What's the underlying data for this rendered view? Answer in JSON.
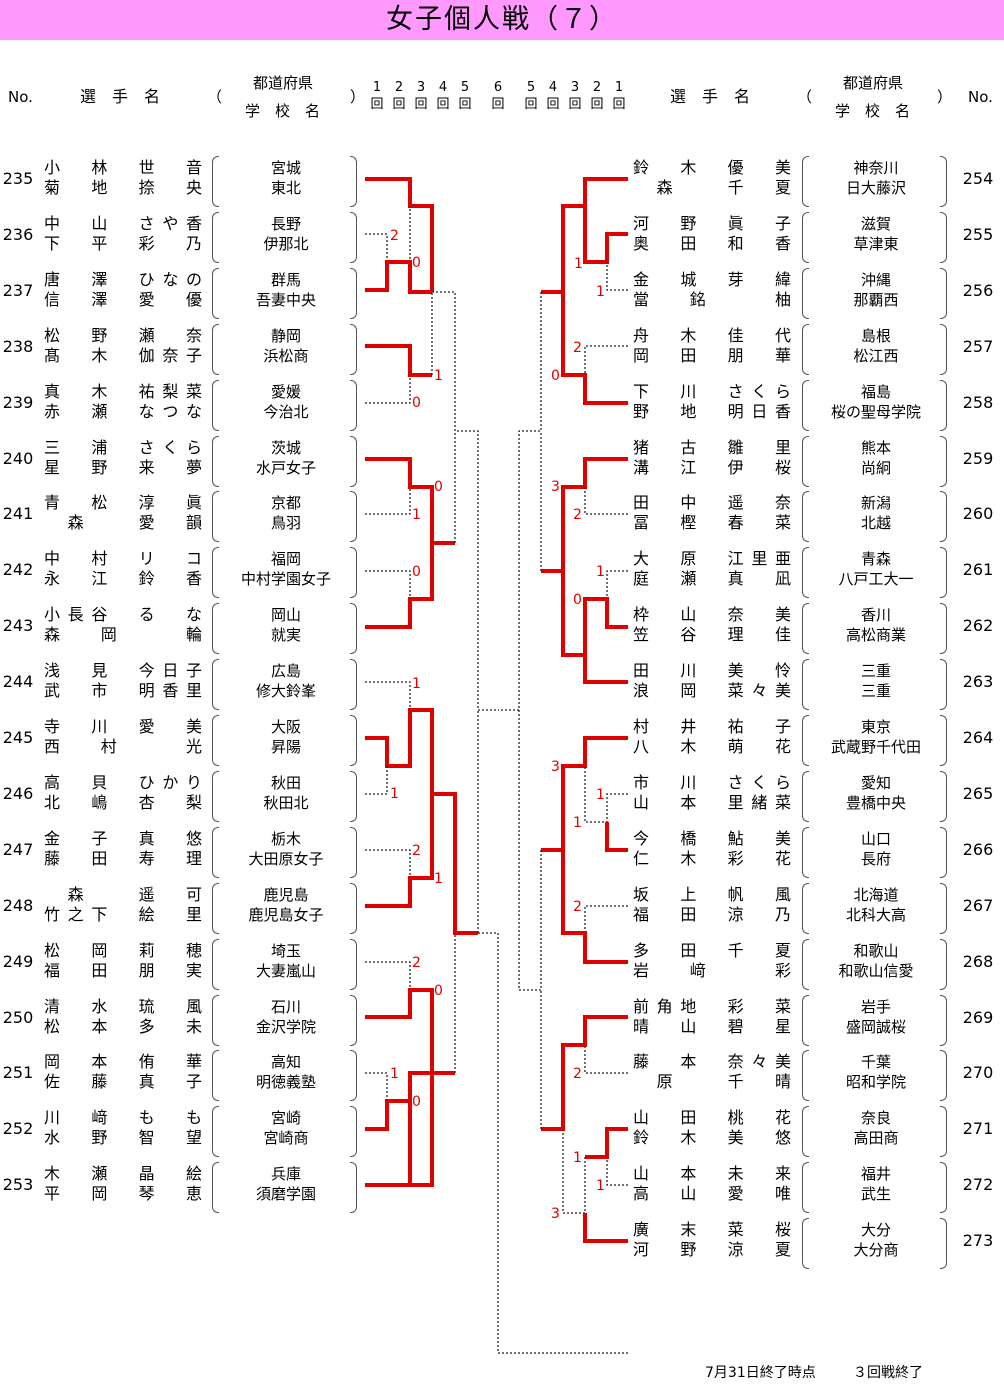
{
  "title": "女子個人戦（７）",
  "headers": {
    "no": "No.",
    "player": "選　手　名",
    "pref": "都道府県",
    "school": "学　校　名",
    "paren_open": "（",
    "paren_close": "）",
    "rounds_left": [
      "1",
      "2",
      "3",
      "4",
      "5"
    ],
    "round_center": "6",
    "rounds_right": [
      "5",
      "4",
      "3",
      "2",
      "1"
    ],
    "round_unit": "回"
  },
  "left": [
    {
      "no": "235",
      "names": [
        "小　林　世　音",
        "菊　地　捺　央"
      ],
      "pref": "宮城",
      "school": "東北"
    },
    {
      "no": "236",
      "names": [
        "中　山　さや香",
        "下　平　彩　乃"
      ],
      "pref": "長野",
      "school": "伊那北"
    },
    {
      "no": "237",
      "names": [
        "唐　澤　ひなの",
        "信　澤　愛　優"
      ],
      "pref": "群馬",
      "school": "吾妻中央"
    },
    {
      "no": "238",
      "names": [
        "松　野　瀬　奈",
        "髙　木　伽奈子"
      ],
      "pref": "静岡",
      "school": "浜松商"
    },
    {
      "no": "239",
      "names": [
        "真　木　祐梨菜",
        "赤　瀬　なつな"
      ],
      "pref": "愛媛",
      "school": "今治北"
    },
    {
      "no": "240",
      "names": [
        "三　浦　さくら",
        "星　野　来　夢"
      ],
      "pref": "茨城",
      "school": "水戸女子"
    },
    {
      "no": "241",
      "names": [
        "青　松　淳　眞",
        "　森　　愛　韻"
      ],
      "pref": "京都",
      "school": "鳥羽"
    },
    {
      "no": "242",
      "names": [
        "中　村　リ　コ",
        "永　江　鈴　香"
      ],
      "pref": "福岡",
      "school": "中村学園女子"
    },
    {
      "no": "243",
      "names": [
        "小長谷　る　な",
        "森　岡　　輪　"
      ],
      "pref": "岡山",
      "school": "就実"
    },
    {
      "no": "244",
      "names": [
        "浅　見　今日子",
        "武　市　明香里"
      ],
      "pref": "広島",
      "school": "修大鈴峯"
    },
    {
      "no": "245",
      "names": [
        "寺　川　愛　美",
        "西　村　　光　"
      ],
      "pref": "大阪",
      "school": "昇陽"
    },
    {
      "no": "246",
      "names": [
        "高　貝　ひかり",
        "北　嶋　杏　梨"
      ],
      "pref": "秋田",
      "school": "秋田北"
    },
    {
      "no": "247",
      "names": [
        "金　子　真　悠",
        "藤　田　寿　理"
      ],
      "pref": "栃木",
      "school": "大田原女子"
    },
    {
      "no": "248",
      "names": [
        "　森　　遥　可",
        "竹之下　絵　里"
      ],
      "pref": "鹿児島",
      "school": "鹿児島女子"
    },
    {
      "no": "249",
      "names": [
        "松　岡　莉　穂",
        "福　田　朋　実"
      ],
      "pref": "埼玉",
      "school": "大妻嵐山"
    },
    {
      "no": "250",
      "names": [
        "清　水　琉　風",
        "松　本　多　未"
      ],
      "pref": "石川",
      "school": "金沢学院"
    },
    {
      "no": "251",
      "names": [
        "岡　本　侑　華",
        "佐　藤　真　子"
      ],
      "pref": "高知",
      "school": "明徳義塾"
    },
    {
      "no": "252",
      "names": [
        "川　﨑　も　も",
        "水　野　智　望"
      ],
      "pref": "宮崎",
      "school": "宮崎商"
    },
    {
      "no": "253",
      "names": [
        "木　瀬　晶　絵",
        "平　岡　琴　恵"
      ],
      "pref": "兵庫",
      "school": "須磨学園"
    }
  ],
  "right": [
    {
      "no": "254",
      "names": [
        "鈴　木　優　美",
        "　森　　千　夏"
      ],
      "pref": "神奈川",
      "school": "日大藤沢"
    },
    {
      "no": "255",
      "names": [
        "河　野　眞　子",
        "奥　田　和　香"
      ],
      "pref": "滋賀",
      "school": "草津東"
    },
    {
      "no": "256",
      "names": [
        "金　城　芽　緯",
        "當　銘　　柚　"
      ],
      "pref": "沖縄",
      "school": "那覇西"
    },
    {
      "no": "257",
      "names": [
        "舟　木　佳　代",
        "岡　田　朋　華"
      ],
      "pref": "島根",
      "school": "松江西"
    },
    {
      "no": "258",
      "names": [
        "下　川　さくら",
        "野　地　明日香"
      ],
      "pref": "福島",
      "school": "桜の聖母学院"
    },
    {
      "no": "259",
      "names": [
        "猪　古　雛　里",
        "溝　江　伊　桜"
      ],
      "pref": "熊本",
      "school": "尚絅"
    },
    {
      "no": "260",
      "names": [
        "田　中　遥　奈",
        "冨　樫　春　菜"
      ],
      "pref": "新潟",
      "school": "北越"
    },
    {
      "no": "261",
      "names": [
        "大　原　江里亜",
        "庭　瀬　真　凪"
      ],
      "pref": "青森",
      "school": "八戸工大一"
    },
    {
      "no": "262",
      "names": [
        "枠　山　奈　美",
        "笠　谷　理　佳"
      ],
      "pref": "香川",
      "school": "高松商業"
    },
    {
      "no": "263",
      "names": [
        "田　川　美　怜",
        "浪　岡　菜々美"
      ],
      "pref": "三重",
      "school": "三重"
    },
    {
      "no": "264",
      "names": [
        "村　井　祐　子",
        "八　木　萌　花"
      ],
      "pref": "東京",
      "school": "武蔵野千代田"
    },
    {
      "no": "265",
      "names": [
        "市　川　さくら",
        "山　本　里緒菜"
      ],
      "pref": "愛知",
      "school": "豊橋中央"
    },
    {
      "no": "266",
      "names": [
        "今　橋　鮎　美",
        "仁　木　彩　花"
      ],
      "pref": "山口",
      "school": "長府"
    },
    {
      "no": "267",
      "names": [
        "坂　上　帆　風",
        "福　田　涼　乃"
      ],
      "pref": "北海道",
      "school": "北科大高"
    },
    {
      "no": "268",
      "names": [
        "多　田　千　夏",
        "岩　﨑　　彩　"
      ],
      "pref": "和歌山",
      "school": "和歌山信愛"
    },
    {
      "no": "269",
      "names": [
        "前角地　彩　菜",
        "晴　山　碧　星"
      ],
      "pref": "岩手",
      "school": "盛岡誠桜"
    },
    {
      "no": "270",
      "names": [
        "藤　本　奈々美",
        "　原　　千　晴"
      ],
      "pref": "千葉",
      "school": "昭和学院"
    },
    {
      "no": "271",
      "names": [
        "山　田　桃　花",
        "鈴　木　美　悠"
      ],
      "pref": "奈良",
      "school": "高田商"
    },
    {
      "no": "272",
      "names": [
        "山　本　未　来",
        "高　山　愛　唯"
      ],
      "pref": "福井",
      "school": "武生"
    },
    {
      "no": "273",
      "names": [
        "廣　末　菜　桜",
        "河　野　涼　夏"
      ],
      "pref": "大分",
      "school": "大分商"
    }
  ],
  "scores": {
    "left": [
      "2",
      "0",
      "1",
      "0",
      "0",
      "1",
      "0",
      "1",
      "1",
      "2",
      "1",
      "2",
      "0",
      "1",
      "0"
    ],
    "right": [
      "1",
      "1",
      "2",
      "0",
      "3",
      "2",
      "1",
      "0",
      "3",
      "1",
      "1",
      "2",
      "2",
      "1",
      "1",
      "3"
    ]
  },
  "colors": {
    "title_bg": "#ff99ff",
    "winner_line": "#e00000",
    "loser_line": "#222222"
  },
  "footer": {
    "date": "7月31日終了時点",
    "status": "３回戦終了"
  }
}
